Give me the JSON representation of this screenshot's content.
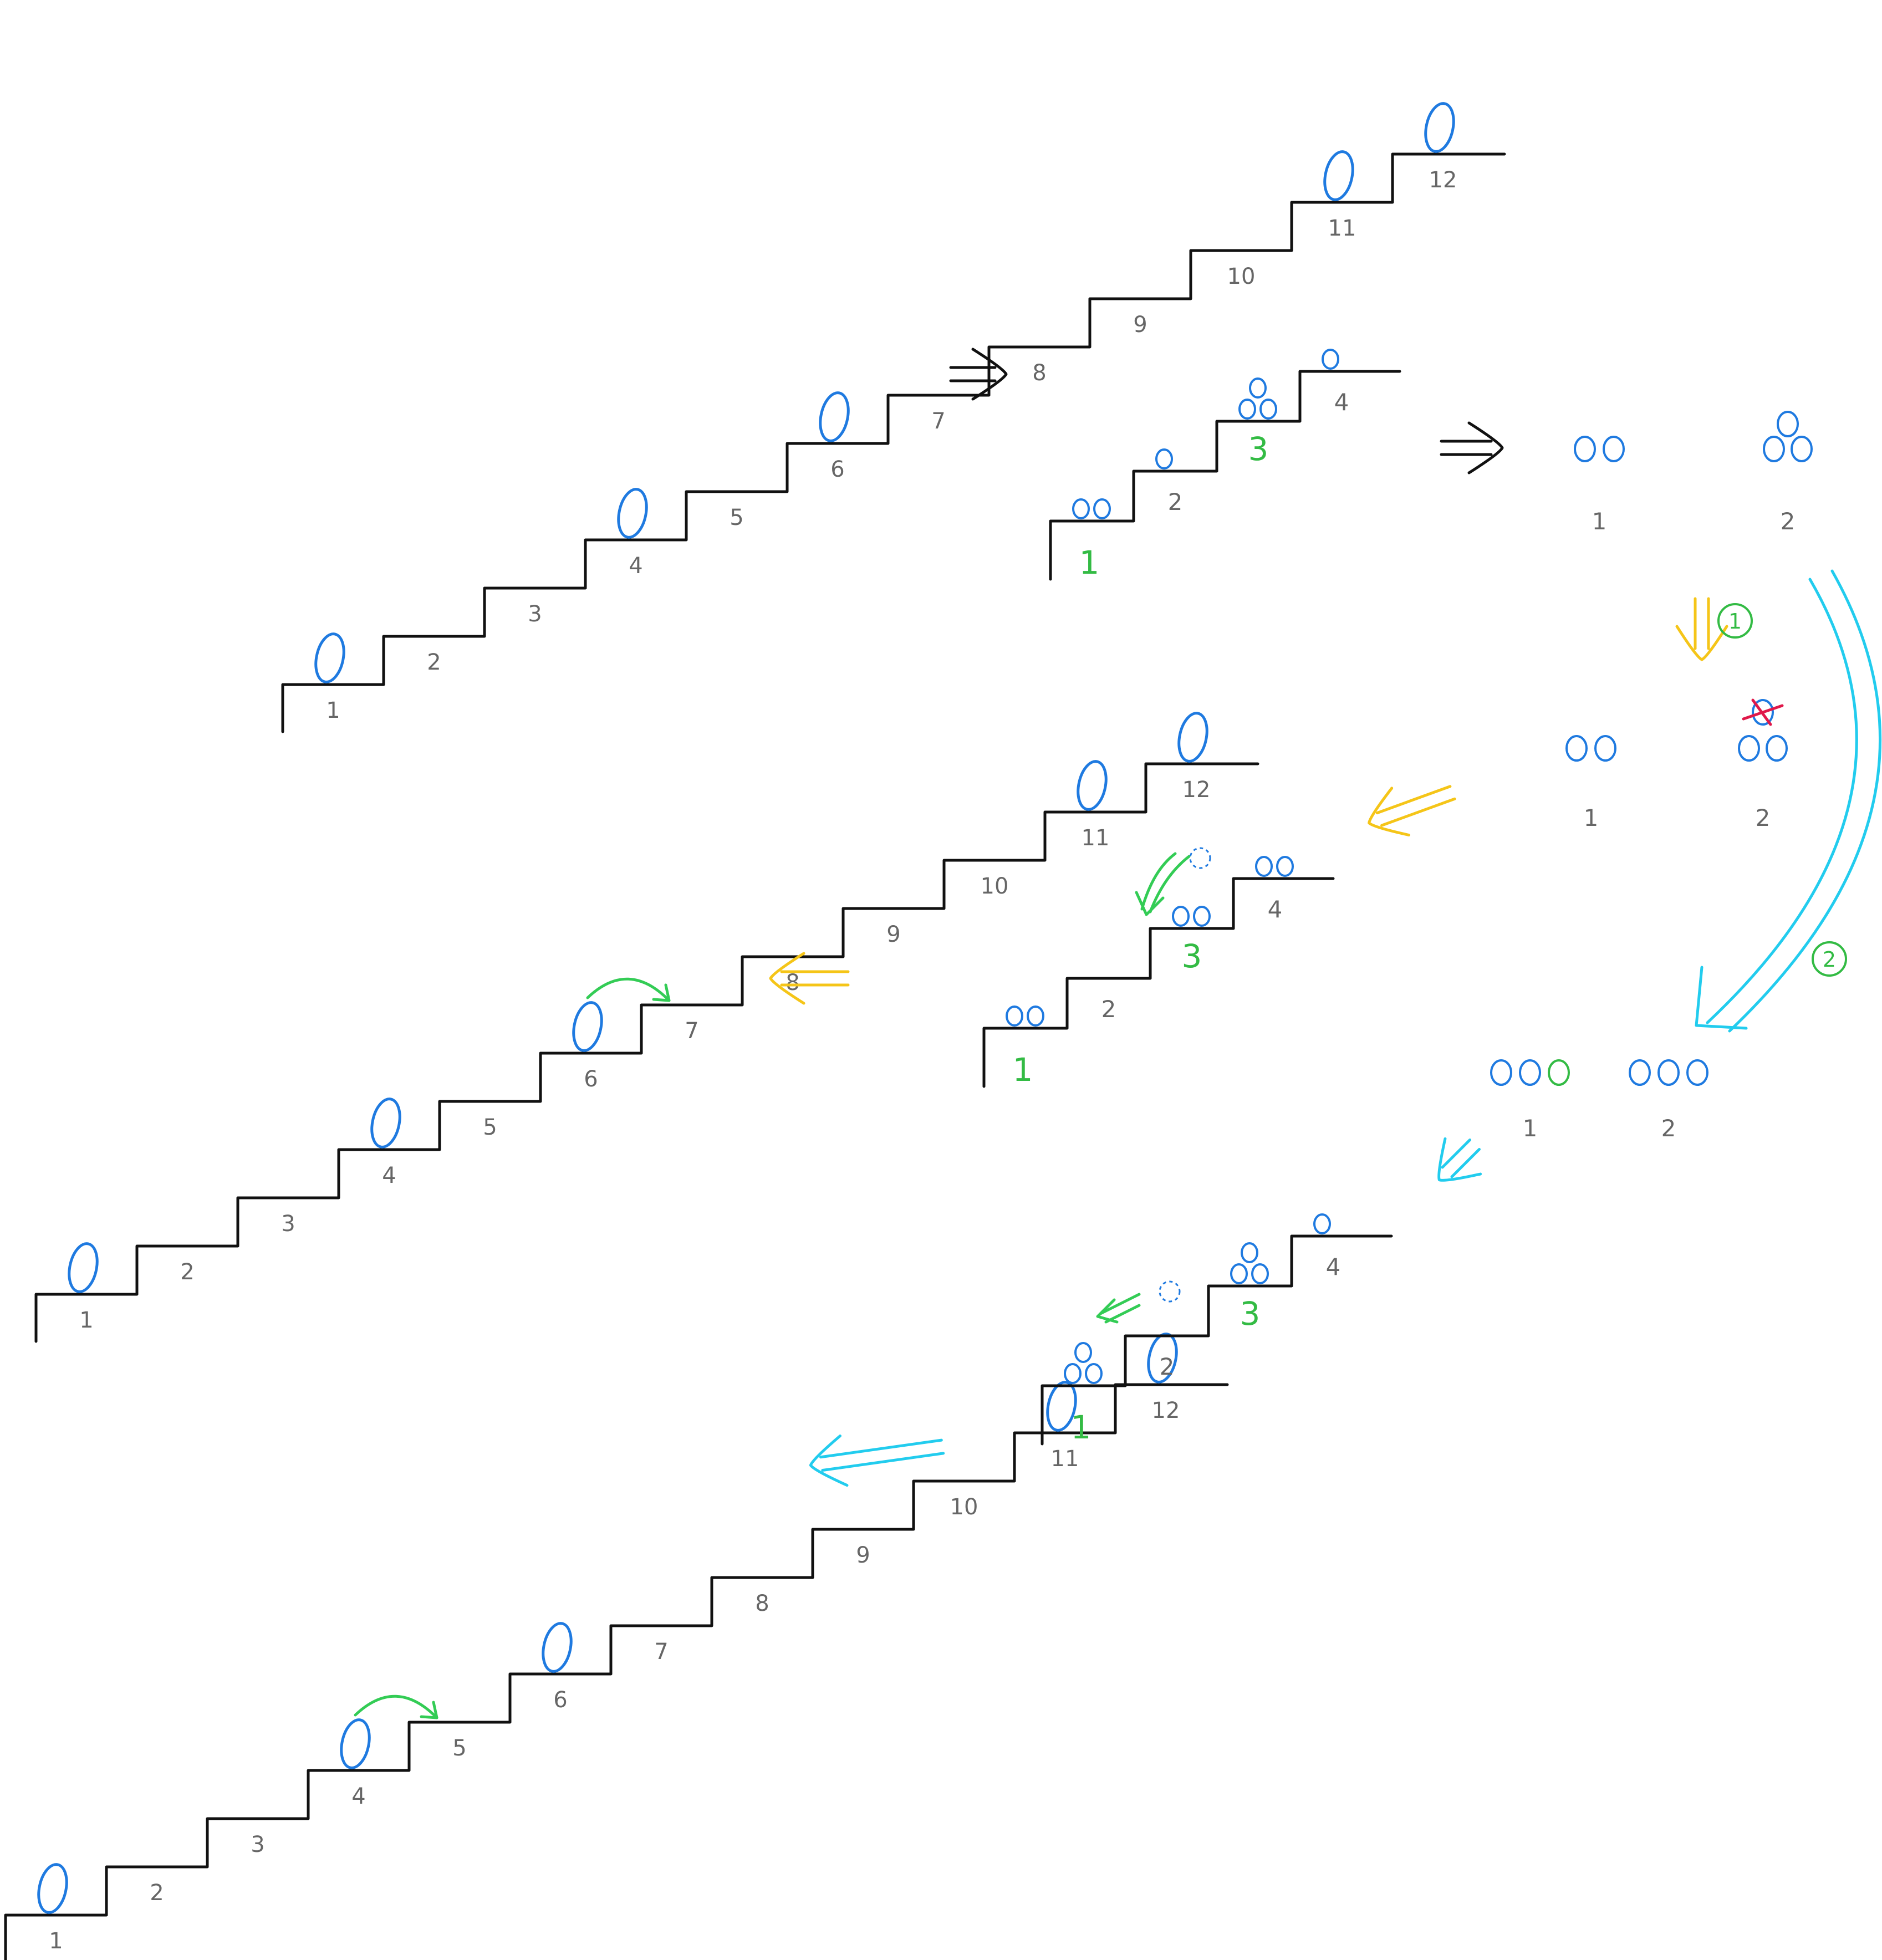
{
  "colors": {
    "stair": "#111111",
    "label": "#666666",
    "egg": "#1f7ae0",
    "small_stair_label": "#33bb44",
    "step1_arrow": "#f5c518",
    "step2_arrow": "#22ccee",
    "move_arrow": "#33cc55",
    "cross": "#e0184a",
    "black_arrow": "#111111"
  },
  "big_staircases": [
    {
      "id": "top",
      "step_labels": [
        "1",
        "2",
        "3",
        "4",
        "5",
        "6",
        "7",
        "8",
        "9",
        "10",
        "11",
        "12"
      ],
      "eggs_on_steps": [
        1,
        4,
        6,
        11,
        12
      ],
      "move_arrow": null
    },
    {
      "id": "middle",
      "step_labels": [
        "1",
        "2",
        "3",
        "4",
        "5",
        "6",
        "7",
        "8",
        "9",
        "10",
        "11",
        "12"
      ],
      "eggs_on_steps": [
        1,
        4,
        6,
        11,
        12
      ],
      "move_arrow": "6→7"
    },
    {
      "id": "bottom",
      "step_labels": [
        "1",
        "2",
        "3",
        "4",
        "5",
        "6",
        "7",
        "8",
        "9",
        "10",
        "11",
        "12"
      ],
      "eggs_on_steps": [
        1,
        4,
        6,
        11,
        12
      ],
      "move_arrow": "4→5"
    }
  ],
  "small_staircases": [
    {
      "id": "initial",
      "step_labels": [
        "1",
        "2",
        "3",
        "4"
      ],
      "pebbles": [
        2,
        1,
        3,
        1
      ]
    },
    {
      "id": "after-step-1",
      "step_labels": [
        "1",
        "2",
        "3",
        "4"
      ],
      "pebbles": [
        2,
        0,
        2,
        2
      ]
    },
    {
      "id": "after-step-2",
      "step_labels": [
        "1",
        "2",
        "3",
        "4"
      ],
      "pebbles": [
        3,
        0,
        3,
        1
      ]
    }
  ],
  "groups": [
    {
      "id": "initial",
      "labels": [
        "1",
        "2"
      ],
      "counts": [
        2,
        3
      ]
    },
    {
      "id": "after-step-1",
      "labels": [
        "1",
        "2"
      ],
      "counts": [
        2,
        3
      ],
      "crossed_out": 1
    },
    {
      "id": "after-step-2",
      "labels": [
        "1",
        "2"
      ],
      "counts": [
        3,
        3
      ]
    }
  ],
  "step_markers": [
    "1",
    "2"
  ],
  "arrow_glyph": "⇒"
}
